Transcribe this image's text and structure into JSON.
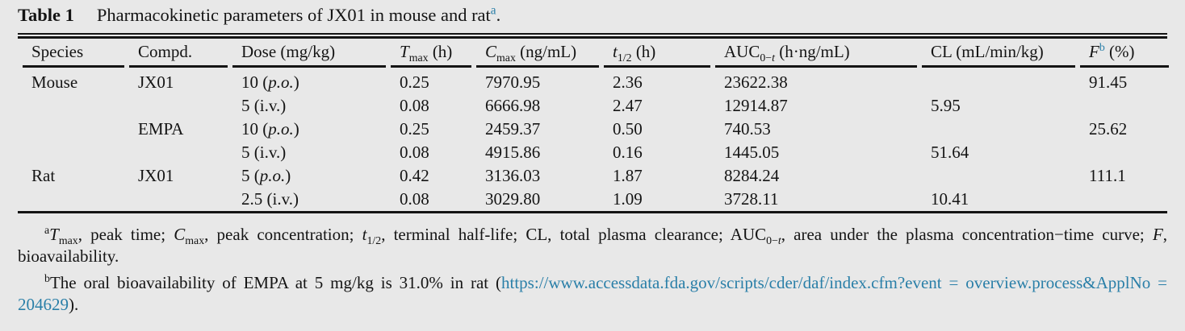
{
  "page": {
    "background_color": "#e8e8e8",
    "text_color": "#141414",
    "accent_blue": "#2a7fa8"
  },
  "title": {
    "label": "Table 1",
    "text": "Pharmacokinetic parameters of JX01 in mouse and rat",
    "marker": "a",
    "suffix": "."
  },
  "table": {
    "headers": [
      "Species",
      "Compd.",
      "Dose (mg/kg)",
      "*T*_{max} (h)",
      "*C*_{max} (ng/mL)",
      "*t*_{1/2} (h)",
      "AUC_{0−*t*} (h·ng/mL)",
      "CL (mL/min/kg)",
      "*F*^{b} (%)"
    ],
    "rows": [
      [
        "Mouse",
        "JX01",
        "10 (*p.o.*)",
        "0.25",
        "7970.95",
        "2.36",
        "23622.38",
        "",
        "91.45"
      ],
      [
        "",
        "",
        "5 (i.v.)",
        "0.08",
        "6666.98",
        "2.47",
        "12914.87",
        "5.95",
        ""
      ],
      [
        "",
        "EMPA",
        "10 (*p.o.*)",
        "0.25",
        "2459.37",
        "0.50",
        "740.53",
        "",
        "25.62"
      ],
      [
        "",
        "",
        "5 (i.v.)",
        "0.08",
        "4915.86",
        "0.16",
        "1445.05",
        "51.64",
        ""
      ],
      [
        "Rat",
        "JX01",
        "5 (*p.o.*)",
        "0.42",
        "3136.03",
        "1.87",
        "8284.24",
        "",
        "111.1"
      ],
      [
        "",
        "",
        "2.5 (i.v.)",
        "0.08",
        "3029.80",
        "1.09",
        "3728.11",
        "10.41",
        ""
      ]
    ]
  },
  "footnotes": {
    "a": {
      "marker": "a",
      "text": "*T*_{max}, peak time; *C*_{max}, peak concentration; *t*_{1/2}, terminal half-life; CL, total plasma clearance; AUC_{0−*t*}, area under the plasma concentration−time curve; *F*, bioavailability."
    },
    "b": {
      "marker": "b",
      "prefix": "The oral bioavailability of EMPA at 5 mg/kg is 31.0% in rat (",
      "link_line1": "https://www.accessdata.fda.gov/scripts/cder/daf/index.cfm?event = overview.",
      "link_line2": "process&ApplNo = 204629",
      "suffix": ")."
    }
  }
}
